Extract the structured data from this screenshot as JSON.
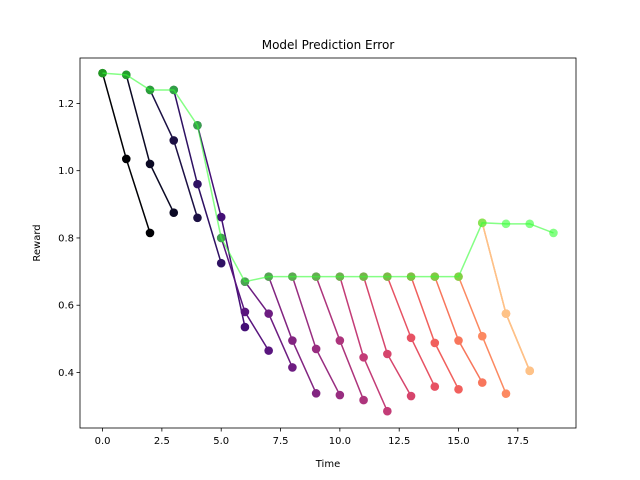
{
  "chart_data": {
    "type": "line",
    "title": "Model Prediction Error",
    "xlabel": "Time",
    "ylabel": "Reward",
    "xlim": [
      -0.95,
      19.95
    ],
    "ylim": [
      0.235,
      1.335
    ],
    "xticks": [
      0.0,
      2.5,
      5.0,
      7.5,
      10.0,
      12.5,
      15.0,
      17.5
    ],
    "xtick_labels": [
      "0.0",
      "2.5",
      "5.0",
      "7.5",
      "10.0",
      "12.5",
      "15.0",
      "17.5"
    ],
    "yticks": [
      0.4,
      0.6,
      0.8,
      1.0,
      1.2
    ],
    "ytick_labels": [
      "0.4",
      "0.6",
      "0.8",
      "1.0",
      "1.2"
    ],
    "grid": false,
    "legend": "none",
    "actual": {
      "color": "#33ff33",
      "x": [
        0,
        1,
        2,
        3,
        4,
        5,
        6,
        7,
        8,
        9,
        10,
        11,
        12,
        13,
        14,
        15,
        16,
        17,
        18,
        19
      ],
      "y": [
        1.29,
        1.285,
        1.24,
        1.24,
        1.135,
        0.8,
        0.67,
        0.685,
        0.685,
        0.685,
        0.685,
        0.685,
        0.685,
        0.685,
        0.685,
        0.685,
        0.845,
        0.842,
        0.842,
        0.815
      ]
    },
    "series": [
      {
        "color": "#000004",
        "x": [
          0,
          1,
          2
        ],
        "y": [
          1.29,
          1.035,
          0.815
        ]
      },
      {
        "color": "#0b0924",
        "x": [
          1,
          2,
          3
        ],
        "y": [
          1.285,
          1.02,
          0.875
        ]
      },
      {
        "color": "#1c1044",
        "x": [
          2,
          3,
          4
        ],
        "y": [
          1.24,
          1.09,
          0.86
        ]
      },
      {
        "color": "#2f1163",
        "x": [
          3,
          4,
          5
        ],
        "y": [
          1.24,
          0.96,
          0.725
        ]
      },
      {
        "color": "#440f76",
        "x": [
          4,
          5,
          6
        ],
        "y": [
          1.135,
          0.862,
          0.535
        ]
      },
      {
        "color": "#59157e",
        "x": [
          5,
          6,
          7
        ],
        "y": [
          0.8,
          0.58,
          0.465
        ]
      },
      {
        "color": "#6d1d81",
        "x": [
          6,
          7,
          8
        ],
        "y": [
          0.67,
          0.575,
          0.415
        ]
      },
      {
        "color": "#822581",
        "x": [
          7,
          8,
          9
        ],
        "y": [
          0.685,
          0.495,
          0.338
        ]
      },
      {
        "color": "#982d80",
        "x": [
          8,
          9,
          10
        ],
        "y": [
          0.685,
          0.47,
          0.333
        ]
      },
      {
        "color": "#ad347c",
        "x": [
          9,
          10,
          11
        ],
        "y": [
          0.685,
          0.495,
          0.318
        ]
      },
      {
        "color": "#c33c77",
        "x": [
          10,
          11,
          12
        ],
        "y": [
          0.685,
          0.445,
          0.285
        ]
      },
      {
        "color": "#d6456c",
        "x": [
          11,
          12,
          13
        ],
        "y": [
          0.685,
          0.455,
          0.33
        ]
      },
      {
        "color": "#e75263",
        "x": [
          12,
          13,
          14
        ],
        "y": [
          0.685,
          0.503,
          0.358
        ]
      },
      {
        "color": "#f1605d",
        "x": [
          13,
          14,
          15
        ],
        "y": [
          0.685,
          0.488,
          0.35
        ]
      },
      {
        "color": "#f8765c",
        "x": [
          14,
          15,
          16
        ],
        "y": [
          0.685,
          0.495,
          0.37
        ]
      },
      {
        "color": "#fc8961",
        "x": [
          15,
          16,
          17
        ],
        "y": [
          0.685,
          0.508,
          0.337
        ]
      },
      {
        "color": "#fea16e",
        "x": [
          16,
          17,
          18
        ],
        "y": [
          0.845,
          0.575,
          0.405
        ]
      },
      {
        "color": "#fec287",
        "x": [
          16,
          17,
          18
        ],
        "y": [
          0.845,
          0.575,
          0.405
        ]
      }
    ]
  }
}
